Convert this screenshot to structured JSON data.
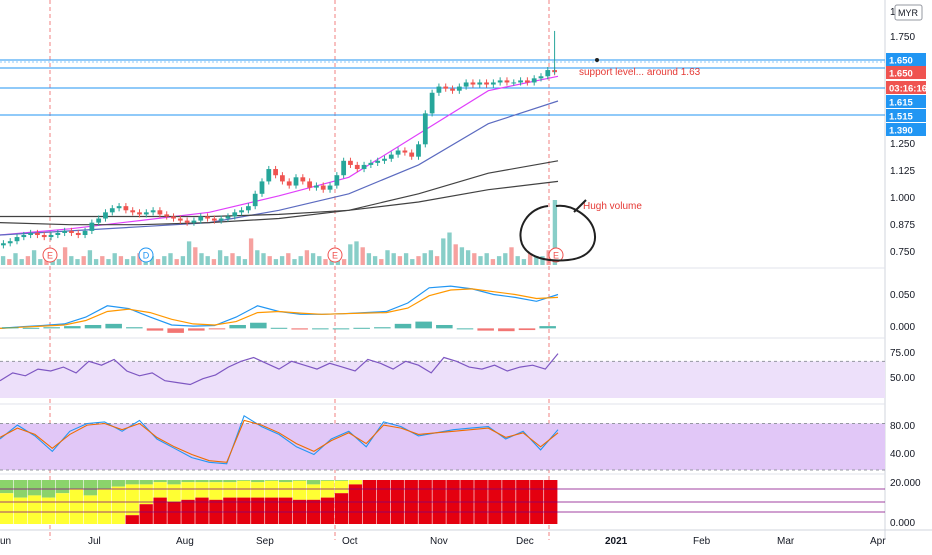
{
  "colors": {
    "up": "#26a69a",
    "down": "#ef5350",
    "level_line": "#2196f3",
    "rsi_line": "#7e57c2",
    "rsi_band": "#ede0fa",
    "stoch_band": "#e1c7f7",
    "stoch_k": "#2196f3",
    "stoch_d": "#ef6c00",
    "macd_line": "#2196f3",
    "signal_line": "#ff9800",
    "ma_short": "#e040fb",
    "ma_mid": "#5c6bc0",
    "ma_long": "#424242",
    "annotation": "#e53935",
    "circle": "#212121",
    "heat_red": "#e4000f",
    "heat_yellow": "#ffff33",
    "heat_green": "#8bd36b"
  },
  "currency": "MYR",
  "countdown": "03:16:16",
  "annotations": {
    "support_text": "support level... around 1.63",
    "volume_text": "Hugh volume"
  },
  "event_markers": [
    "E",
    "D",
    "E",
    "E"
  ],
  "chart_data": [
    {
      "type": "candlestick",
      "pane": "price",
      "ylim": [
        0.7,
        2.0
      ],
      "y_ticks": [
        "1.750",
        "1.250",
        "1.125",
        "1.000",
        "0.875",
        "0.750"
      ],
      "y_top_tick": "1",
      "price_labels": [
        {
          "value": "1.650",
          "kind": "blue"
        },
        {
          "value": "1.650",
          "kind": "red"
        },
        {
          "value": "1.615",
          "kind": "blue"
        },
        {
          "value": "1.515",
          "kind": "blue"
        },
        {
          "value": "1.390",
          "kind": "blue"
        }
      ],
      "horizontal_levels": [
        1.65,
        1.63,
        1.615,
        1.515
      ],
      "x_labels": [
        "un",
        "Jul",
        "Aug",
        "Sep",
        "Oct",
        "Nov",
        "Dec",
        "2021",
        "Feb",
        "Mar",
        "Apr"
      ],
      "close_series": [
        {
          "month": "Jun",
          "values": [
            0.82,
            0.83,
            0.85,
            0.86,
            0.87,
            0.86,
            0.85,
            0.86,
            0.87,
            0.88,
            0.87,
            0.86
          ]
        },
        {
          "month": "Jul",
          "values": [
            0.88,
            0.92,
            0.94,
            0.97,
            0.99,
            1.0,
            0.98,
            0.97,
            0.96,
            0.97,
            0.98,
            0.96
          ]
        },
        {
          "month": "Aug",
          "values": [
            0.95,
            0.94,
            0.93,
            0.92,
            0.93,
            0.95,
            0.94,
            0.93,
            0.94,
            0.95,
            0.97,
            0.98
          ]
        },
        {
          "month": "Sep",
          "values": [
            1.0,
            1.06,
            1.12,
            1.18,
            1.15,
            1.12,
            1.1,
            1.14,
            1.12,
            1.09,
            1.1,
            1.08
          ]
        },
        {
          "month": "Oct",
          "values": [
            1.1,
            1.15,
            1.22,
            1.2,
            1.18,
            1.2,
            1.21,
            1.22,
            1.23,
            1.25,
            1.27,
            1.26
          ]
        },
        {
          "month": "Nov",
          "values": [
            1.24,
            1.3,
            1.45,
            1.55,
            1.58,
            1.57,
            1.56,
            1.58,
            1.6,
            1.59,
            1.6,
            1.59
          ]
        },
        {
          "month": "Dec",
          "values": [
            1.6,
            1.61,
            1.6,
            1.6,
            1.61,
            1.6,
            1.62,
            1.63,
            1.66,
            1.65
          ]
        }
      ],
      "moving_averages": [
        {
          "key": "ma_short",
          "values": [
            0.86,
            0.89,
            0.93,
            0.97,
            1.05,
            1.14,
            1.35,
            1.56,
            1.63
          ]
        },
        {
          "key": "ma_mid",
          "values": [
            0.86,
            0.88,
            0.9,
            0.92,
            0.98,
            1.06,
            1.2,
            1.4,
            1.51
          ]
        },
        {
          "key": "ma_long",
          "values": [
            0.92,
            0.91,
            0.91,
            0.92,
            0.94,
            0.98,
            1.06,
            1.16,
            1.22
          ]
        },
        {
          "key": "ma_long",
          "values": [
            0.95,
            0.95,
            0.95,
            0.95,
            0.96,
            0.98,
            1.02,
            1.08,
            1.12
          ]
        }
      ]
    },
    {
      "type": "bar",
      "pane": "volume",
      "note": "relative volume, peak on last bar",
      "values": [
        3,
        2,
        4,
        2,
        3,
        5,
        2,
        3,
        4,
        2,
        6,
        3,
        2,
        3,
        5,
        2,
        3,
        2,
        4,
        3,
        2,
        3,
        4,
        5,
        3,
        2,
        3,
        4,
        2,
        3,
        8,
        6,
        4,
        3,
        2,
        5,
        3,
        4,
        3,
        2,
        9,
        5,
        4,
        3,
        2,
        3,
        4,
        2,
        3,
        5,
        4,
        3,
        2,
        3,
        4,
        2,
        7,
        8,
        6,
        4,
        3,
        2,
        5,
        4,
        3,
        4,
        2,
        3,
        4,
        5,
        3,
        9,
        11,
        7,
        6,
        5,
        4,
        3,
        4,
        2,
        3,
        4,
        6,
        3,
        2,
        4,
        3,
        3,
        5,
        22
      ]
    },
    {
      "type": "line",
      "pane": "macd",
      "y_ticks": [
        "0.050",
        "0.000"
      ],
      "ylim": [
        -0.01,
        0.1
      ],
      "series": [
        {
          "key": "macd_line",
          "values": [
            0.0,
            0.003,
            0.005,
            0.008,
            0.02,
            0.04,
            0.035,
            0.02,
            0.006,
            0.004,
            0.005,
            0.02,
            0.04,
            0.03,
            0.025,
            0.025,
            0.026,
            0.028,
            0.03,
            0.045,
            0.072,
            0.075,
            0.07,
            0.06,
            0.055,
            0.048,
            0.06
          ]
        },
        {
          "key": "signal_line",
          "values": [
            0.0,
            0.002,
            0.004,
            0.006,
            0.014,
            0.03,
            0.034,
            0.028,
            0.016,
            0.008,
            0.006,
            0.012,
            0.028,
            0.03,
            0.027,
            0.025,
            0.026,
            0.027,
            0.028,
            0.036,
            0.058,
            0.068,
            0.07,
            0.065,
            0.06,
            0.053,
            0.055
          ]
        }
      ],
      "histogram": [
        0.002,
        0.001,
        0.002,
        0.004,
        0.006,
        0.008,
        0.002,
        -0.004,
        -0.008,
        -0.004,
        -0.001,
        0.006,
        0.01,
        0.001,
        -0.002,
        0.0,
        0.0,
        0.001,
        0.002,
        0.008,
        0.012,
        0.006,
        0.0,
        -0.004,
        -0.005,
        -0.003,
        0.004
      ]
    },
    {
      "type": "line",
      "pane": "rsi",
      "y_ticks": [
        "75.00",
        "50.00"
      ],
      "ylim": [
        30,
        90
      ],
      "values": [
        50,
        58,
        55,
        62,
        60,
        64,
        58,
        70,
        66,
        72,
        60,
        55,
        58,
        50,
        48,
        46,
        52,
        56,
        64,
        70,
        74,
        68,
        62,
        70,
        66,
        62,
        68,
        64,
        60,
        72,
        68,
        62,
        70,
        66,
        58,
        74,
        70,
        64,
        62,
        66,
        60,
        64,
        66,
        62,
        78
      ]
    },
    {
      "type": "line",
      "pane": "stochastic",
      "y_ticks": [
        "80.00",
        "40.00"
      ],
      "ylim": [
        20,
        100
      ],
      "series": [
        {
          "key": "stoch_k",
          "values": [
            60,
            78,
            64,
            44,
            70,
            80,
            82,
            70,
            84,
            60,
            48,
            36,
            30,
            28,
            90,
            76,
            66,
            50,
            40,
            60,
            70,
            50,
            82,
            76,
            64,
            68,
            72,
            74,
            76,
            60,
            70,
            46,
            72
          ]
        },
        {
          "key": "stoch_d",
          "values": [
            62,
            74,
            66,
            48,
            66,
            78,
            80,
            72,
            80,
            62,
            50,
            40,
            32,
            30,
            84,
            78,
            68,
            54,
            44,
            58,
            68,
            54,
            78,
            74,
            66,
            68,
            70,
            72,
            74,
            62,
            68,
            50,
            68
          ]
        }
      ]
    },
    {
      "type": "bar",
      "pane": "heatmap",
      "y_ticks": [
        "20.000",
        "0.000"
      ],
      "note": "stacked trend-strength columns: red share grows over time",
      "red_share": [
        0,
        0,
        0,
        0,
        0,
        0,
        0,
        0,
        0,
        0.2,
        0.45,
        0.6,
        0.5,
        0.55,
        0.6,
        0.55,
        0.6,
        0.6,
        0.6,
        0.6,
        0.6,
        0.55,
        0.55,
        0.6,
        0.7,
        0.9,
        1,
        1,
        1,
        1,
        1,
        1,
        1,
        1,
        1,
        1,
        1,
        1,
        1,
        1
      ],
      "green_share": [
        0.3,
        0.4,
        0.35,
        0.4,
        0.3,
        0.2,
        0.35,
        0.2,
        0.15,
        0.1,
        0.1,
        0.05,
        0.1,
        0.05,
        0.05,
        0.05,
        0.05,
        0.02,
        0.05,
        0.02,
        0.05,
        0.02,
        0.1,
        0.02,
        0.02,
        0,
        0,
        0,
        0,
        0,
        0,
        0,
        0,
        0,
        0,
        0,
        0,
        0,
        0,
        0
      ]
    }
  ]
}
